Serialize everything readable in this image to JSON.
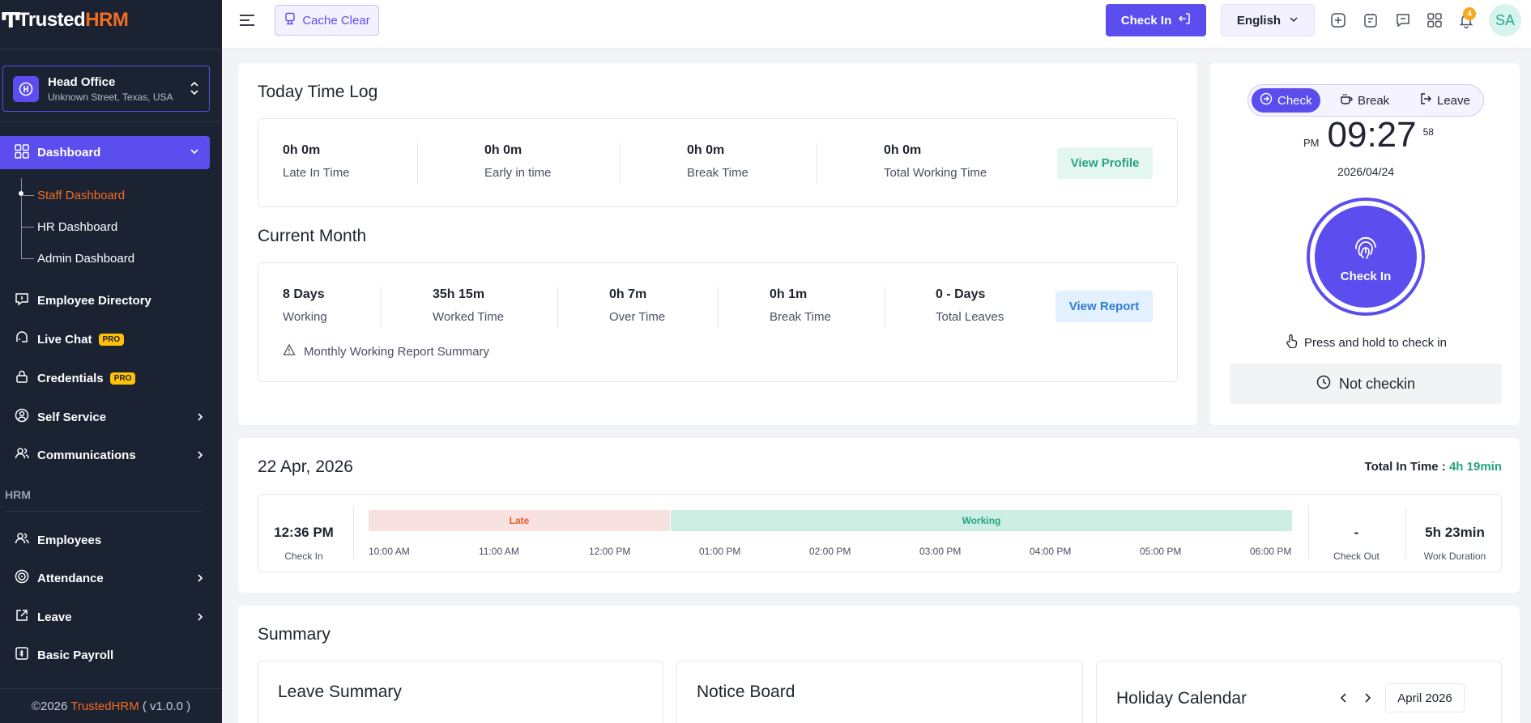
{
  "brand": {
    "name_part1": "Trusted",
    "name_part2": "HRM"
  },
  "office": {
    "name": "Head Office",
    "address": "Unknown Street, Texas, USA"
  },
  "sidebar": {
    "active": {
      "label": "Dashboard"
    },
    "sub_items": [
      "Staff Dashboard",
      "HR Dashboard",
      "Admin Dashboard"
    ],
    "items": [
      {
        "label": "Employee Directory"
      },
      {
        "label": "Live Chat",
        "badge": "PRO"
      },
      {
        "label": "Credentials",
        "badge": "PRO"
      },
      {
        "label": "Self Service"
      },
      {
        "label": "Communications"
      }
    ],
    "section": "HRM",
    "hrm_items": [
      {
        "label": "Employees"
      },
      {
        "label": "Attendance"
      },
      {
        "label": "Leave"
      },
      {
        "label": "Basic Payroll"
      }
    ],
    "footer": {
      "prefix": "©2026 ",
      "brand": "TrustedHRM",
      "suffix": " ( v1.0.0 )"
    }
  },
  "topbar": {
    "cache_label": "Cache Clear",
    "checkin_label": "Check In",
    "language": "English",
    "notification_count": "4",
    "avatar_initials": "SA"
  },
  "today_log": {
    "title": "Today Time Log",
    "stats": [
      {
        "value": "0h 0m",
        "label": "Late In Time"
      },
      {
        "value": "0h 0m",
        "label": "Early in time"
      },
      {
        "value": "0h 0m",
        "label": "Break Time"
      },
      {
        "value": "0h 0m",
        "label": "Total Working Time"
      }
    ],
    "button": "View Profile"
  },
  "current_month": {
    "title": "Current Month",
    "stats": [
      {
        "value": "8 Days",
        "label": "Working"
      },
      {
        "value": "35h 15m",
        "label": "Worked Time"
      },
      {
        "value": "0h 7m",
        "label": "Over Time"
      },
      {
        "value": "0h 1m",
        "label": "Break Time"
      },
      {
        "value": "0 - Days",
        "label": "Total Leaves"
      }
    ],
    "button": "View Report",
    "note": "Monthly Working Report Summary"
  },
  "check_panel": {
    "tabs": [
      "Check",
      "Break",
      "Leave"
    ],
    "ampm": "PM",
    "time": "09:27",
    "seconds": "58",
    "date": "2026/04/24",
    "button": "Check In",
    "hint": "Press and hold to check in",
    "status": "Not checkin"
  },
  "timeline": {
    "date": "22 Apr, 2026",
    "total_label": "Total In Time : ",
    "total_value": "4h 19min",
    "check_in": {
      "value": "12:36 PM",
      "label": "Check In"
    },
    "check_out": {
      "value": "-",
      "label": "Check Out"
    },
    "duration": {
      "value": "5h 23min",
      "label": "Work Duration"
    },
    "segments": [
      {
        "label": "Late",
        "color": "#f7e1e1",
        "text_color": "#e65b2a"
      },
      {
        "label": "Working",
        "color": "#cdeee2",
        "text_color": "#25a37f"
      }
    ],
    "times": [
      "10:00 AM",
      "11:00 AM",
      "12:00 PM",
      "01:00 PM",
      "02:00 PM",
      "03:00 PM",
      "04:00 PM",
      "05:00 PM",
      "06:00 PM"
    ]
  },
  "summary": {
    "title": "Summary",
    "cards": [
      "Leave Summary",
      "Notice Board",
      "Holiday Calendar"
    ],
    "calendar_month": "April 2026"
  },
  "colors": {
    "accent": "#5b4dee",
    "brand_orange": "#f26d21",
    "sidebar_bg": "#1b2232"
  }
}
